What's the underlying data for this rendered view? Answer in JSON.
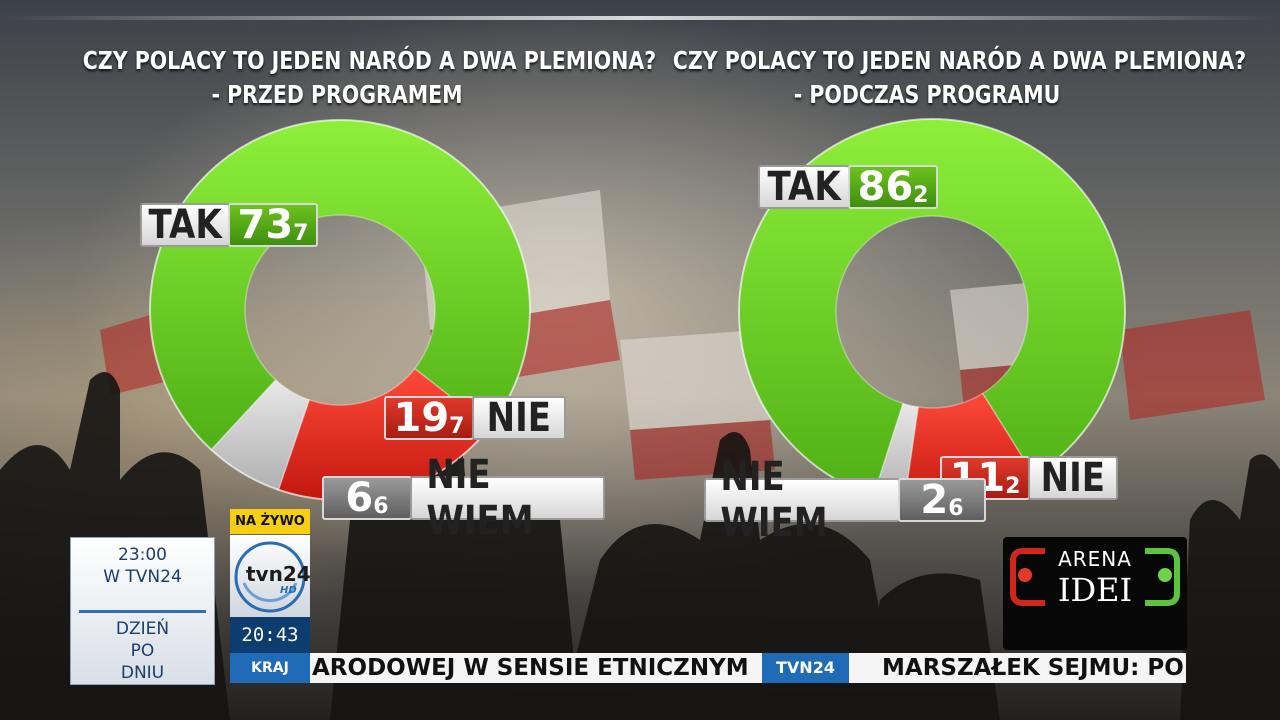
{
  "charts_text": {
    "left": {
      "title_line1": "CZY POLACY TO JEDEN NARÓD A DWA PLEMIONA?",
      "title_line2": "- PRZED PROGRAMEM"
    },
    "right": {
      "title_line1": "CZY POLACY TO JEDEN NARÓD A DWA PLEMIONA?",
      "title_line2": "- PODCZAS PROGRAMU"
    }
  },
  "chart_data": [
    {
      "type": "pie",
      "title": "CZY POLACY TO JEDEN NARÓD A DWA PLEMIONA? - PRZED PROGRAMEM",
      "categories": [
        "TAK",
        "NIE",
        "NIE WIEM"
      ],
      "values": [
        73.7,
        19.7,
        6.6
      ],
      "labels": {
        "tak": {
          "name": "TAK",
          "int": "73",
          "dec": "7"
        },
        "nie": {
          "name": "NIE",
          "int": "19",
          "dec": "7"
        },
        "niewiem": {
          "name": "NIE WIEM",
          "int": "6",
          "dec": "6"
        }
      },
      "colors": [
        "#6ad324",
        "#e0271e",
        "#d4d4d4"
      ],
      "donut": true
    },
    {
      "type": "pie",
      "title": "CZY POLACY TO JEDEN NARÓD A DWA PLEMIONA? - PODCZAS PROGRAMU",
      "categories": [
        "TAK",
        "NIE",
        "NIE WIEM"
      ],
      "values": [
        86.2,
        11.2,
        2.6
      ],
      "labels": {
        "tak": {
          "name": "TAK",
          "int": "86",
          "dec": "2"
        },
        "nie": {
          "name": "NIE",
          "int": "11",
          "dec": "2"
        },
        "niewiem": {
          "name": "NIE WIEM",
          "int": "2",
          "dec": "6"
        }
      },
      "colors": [
        "#6ad324",
        "#e0271e",
        "#d4d4d4"
      ],
      "donut": true
    }
  ],
  "broadcast": {
    "schedule_time": "23:00",
    "schedule_channel": "W TVN24",
    "program_line1": "DZIEŃ",
    "program_line2": "PO",
    "program_line3": "DNIU",
    "live": "NA ŻYWO",
    "logo_text": "tvn24",
    "logo_hd": "HD",
    "clock": "20:43",
    "section": "KRAJ",
    "ticker_1": "ARODOWEJ W SENSIE ETNICZNYM",
    "ticker_tag": "TVN24",
    "ticker_2": "MARSZAŁEK SEJMU: PO",
    "arena_line1": "ARENA",
    "arena_line2": "IDEI"
  }
}
